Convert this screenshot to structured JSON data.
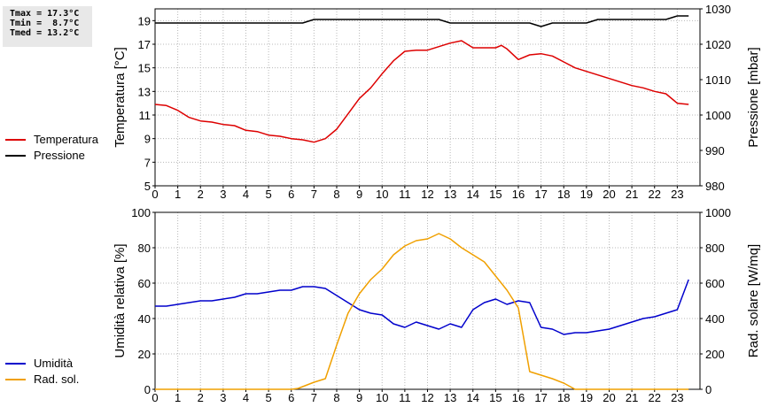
{
  "stats": {
    "tmax": "Tmax = 17.3°C",
    "tmin": "Tmin =  8.7°C",
    "tmed": "Tmed = 13.2°C"
  },
  "chart_data": [
    {
      "type": "line",
      "x_ticks": [
        0,
        1,
        2,
        3,
        4,
        5,
        6,
        7,
        8,
        9,
        10,
        11,
        12,
        13,
        14,
        15,
        16,
        17,
        18,
        19,
        20,
        21,
        22,
        23
      ],
      "xlim": [
        0,
        24
      ],
      "ylabel": "Temperatura [°C]",
      "ylim": [
        5,
        20
      ],
      "y_ticks": [
        5,
        7,
        9,
        11,
        13,
        15,
        17,
        19
      ],
      "y2label": "Pressione [mbar]",
      "y2lim": [
        980,
        1030
      ],
      "y2_ticks": [
        980,
        990,
        1000,
        1010,
        1020,
        1030
      ],
      "grid": true,
      "legend_position": "left",
      "series": [
        {
          "name": "Temperatura",
          "axis": "left",
          "color": "#dd0000",
          "x": [
            0,
            0.5,
            1,
            1.5,
            2,
            2.5,
            3,
            3.5,
            4,
            4.5,
            5,
            5.5,
            6,
            6.5,
            7,
            7.5,
            8,
            8.5,
            9,
            9.5,
            10,
            10.5,
            11,
            11.5,
            12,
            12.5,
            13,
            13.5,
            14,
            14.5,
            15,
            15.25,
            15.5,
            16,
            16.5,
            17,
            17.5,
            18,
            18.5,
            19,
            19.5,
            20,
            20.5,
            21,
            21.5,
            22,
            22.5,
            23,
            23.5
          ],
          "values": [
            11.9,
            11.8,
            11.4,
            10.8,
            10.5,
            10.4,
            10.2,
            10.1,
            9.7,
            9.6,
            9.3,
            9.2,
            9.0,
            8.9,
            8.7,
            9.0,
            9.8,
            11.1,
            12.4,
            13.3,
            14.5,
            15.6,
            16.4,
            16.5,
            16.5,
            16.8,
            17.1,
            17.3,
            16.7,
            16.7,
            16.7,
            16.9,
            16.6,
            15.7,
            16.1,
            16.2,
            16.0,
            15.5,
            15.0,
            14.7,
            14.4,
            14.1,
            13.8,
            13.5,
            13.3,
            13.0,
            12.8,
            12.0,
            11.9
          ]
        },
        {
          "name": "Pressione",
          "axis": "right",
          "color": "#000000",
          "x": [
            0,
            6.5,
            7,
            12.5,
            13,
            16.5,
            17,
            17.5,
            19,
            19.5,
            22.5,
            23,
            23.5
          ],
          "values": [
            1026,
            1026,
            1027,
            1027,
            1026,
            1026,
            1025,
            1026,
            1026,
            1027,
            1027,
            1028,
            1028
          ]
        }
      ]
    },
    {
      "type": "line",
      "x_ticks": [
        0,
        1,
        2,
        3,
        4,
        5,
        6,
        7,
        8,
        9,
        10,
        11,
        12,
        13,
        14,
        15,
        16,
        17,
        18,
        19,
        20,
        21,
        22,
        23
      ],
      "xlim": [
        0,
        24
      ],
      "ylabel": "Umidità relativa [%]",
      "ylim": [
        0,
        100
      ],
      "y_ticks": [
        0,
        20,
        40,
        60,
        80,
        100
      ],
      "y2label": "Rad. solare [W/mq]",
      "y2lim": [
        0,
        1000
      ],
      "y2_ticks": [
        0,
        200,
        400,
        600,
        800,
        1000
      ],
      "grid": true,
      "legend_position": "left",
      "series": [
        {
          "name": "Umidità",
          "axis": "left",
          "color": "#0000cc",
          "x": [
            0,
            0.5,
            1,
            1.5,
            2,
            2.5,
            3,
            3.5,
            4,
            4.5,
            5,
            5.5,
            6,
            6.5,
            7,
            7.5,
            8,
            8.5,
            9,
            9.5,
            10,
            10.5,
            11,
            11.5,
            12,
            12.5,
            13,
            13.5,
            14,
            14.5,
            15,
            15.5,
            16,
            16.5,
            17,
            17.5,
            18,
            18.5,
            19,
            19.5,
            20,
            20.5,
            21,
            21.5,
            22,
            22.5,
            23,
            23.5
          ],
          "values": [
            47,
            47,
            48,
            49,
            50,
            50,
            51,
            52,
            54,
            54,
            55,
            56,
            56,
            58,
            58,
            57,
            53,
            49,
            45,
            43,
            42,
            37,
            35,
            38,
            36,
            34,
            37,
            35,
            45,
            49,
            51,
            48,
            50,
            49,
            35,
            34,
            31,
            32,
            32,
            33,
            34,
            36,
            38,
            40,
            41,
            43,
            45,
            62
          ]
        },
        {
          "name": "Rad. sol.",
          "axis": "right",
          "color": "#f0a000",
          "x": [
            0,
            1,
            2,
            3,
            4,
            5,
            6,
            6.3,
            7,
            7.5,
            8,
            8.5,
            9,
            9.5,
            10,
            10.5,
            11,
            11.5,
            12,
            12.5,
            13,
            13.5,
            14,
            14.5,
            15,
            15.5,
            16,
            16.5,
            17,
            17.5,
            18,
            18.5,
            19,
            20,
            21,
            22,
            23,
            23.5
          ],
          "values": [
            0,
            0,
            0,
            0,
            0,
            0,
            0,
            5,
            40,
            60,
            250,
            430,
            540,
            620,
            680,
            760,
            810,
            840,
            850,
            880,
            850,
            800,
            760,
            720,
            640,
            560,
            460,
            100,
            80,
            60,
            35,
            0,
            0,
            0,
            0,
            0,
            0,
            0
          ]
        }
      ]
    }
  ]
}
